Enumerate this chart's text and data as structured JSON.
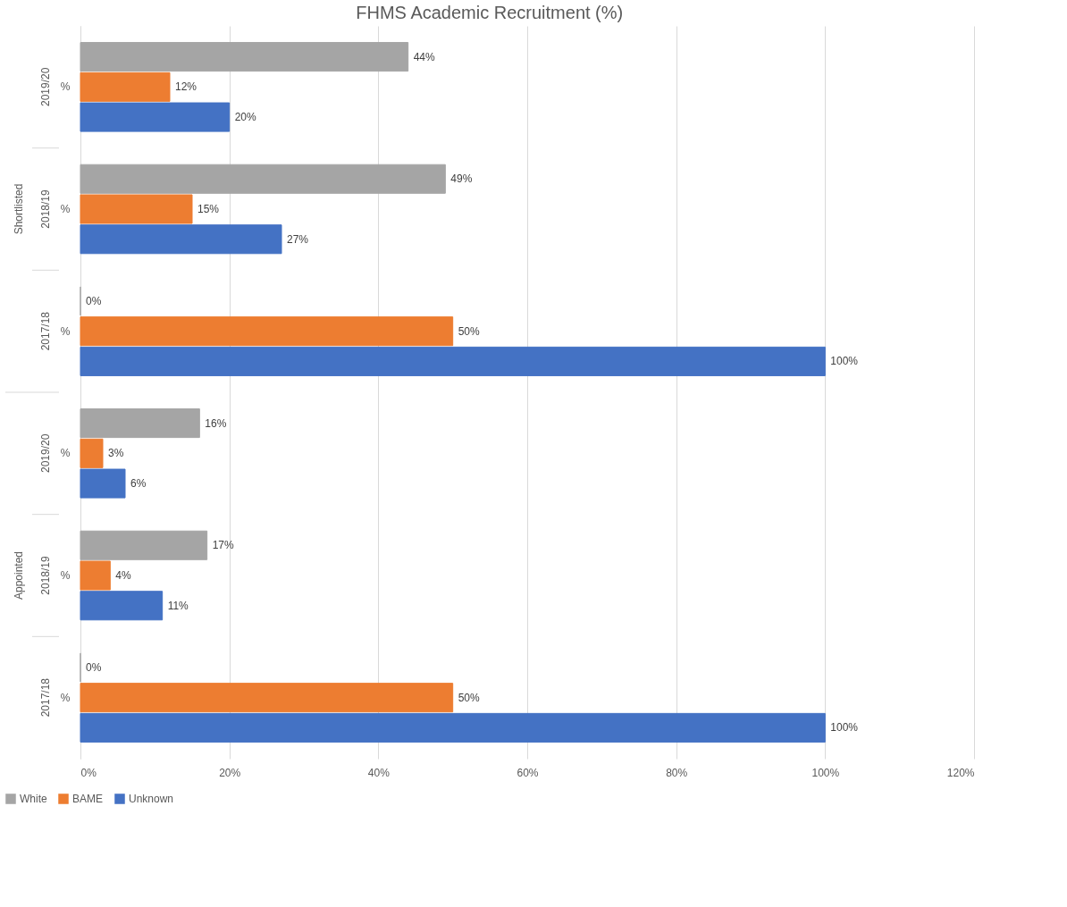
{
  "chart_data": {
    "type": "bar",
    "orientation": "horizontal",
    "title": "FHMS Academic Recruitment (%)",
    "categories": [
      "%",
      "%",
      "%",
      "%",
      "%",
      "%"
    ],
    "annotations": [
      "2019/20",
      "2018/19",
      "2017/18",
      "2019/20",
      "2018/19",
      "2017/18",
      "Shortlisted",
      "Appointed"
    ],
    "series": [
      {
        "name": "White",
        "color": "#a5a5a5",
        "values": [
          44,
          49,
          0,
          16,
          17,
          0
        ],
        "value_labels": [
          "44%",
          "49%",
          "0%",
          "16%",
          "17%",
          "0%"
        ]
      },
      {
        "name": "BAME",
        "color": "#ed7d31",
        "values": [
          12,
          15,
          50,
          3,
          4,
          50
        ],
        "value_labels": [
          "12%",
          "15%",
          "50%",
          "3%",
          "4%",
          "50%"
        ]
      },
      {
        "name": "Unknown",
        "color": "#4472c4",
        "values": [
          20,
          27,
          100,
          6,
          11,
          100
        ],
        "value_labels": [
          "20%",
          "27%",
          "100%",
          "6%",
          "11%",
          "100%"
        ]
      }
    ],
    "xlim": [
      0,
      120
    ],
    "xticks": [
      {
        "value": 0,
        "label": "0%"
      },
      {
        "value": 20,
        "label": "20%"
      },
      {
        "value": 40,
        "label": "40%"
      },
      {
        "value": 60,
        "label": "60%"
      },
      {
        "value": 80,
        "label": "80%"
      },
      {
        "value": 100,
        "label": "100%"
      },
      {
        "value": 120,
        "label": "120%"
      }
    ],
    "grid": "x",
    "legend": "bottom"
  }
}
